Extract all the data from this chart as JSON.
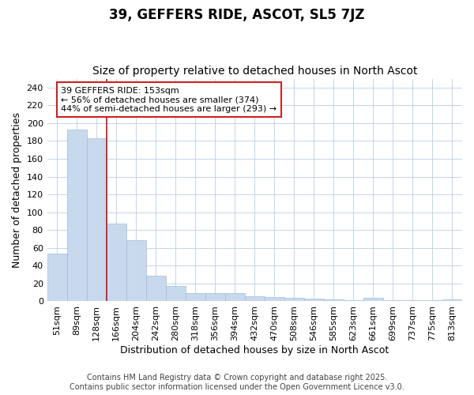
{
  "title": "39, GEFFERS RIDE, ASCOT, SL5 7JZ",
  "subtitle": "Size of property relative to detached houses in North Ascot",
  "xlabel": "Distribution of detached houses by size in North Ascot",
  "ylabel": "Number of detached properties",
  "bin_labels": [
    "51sqm",
    "89sqm",
    "128sqm",
    "166sqm",
    "204sqm",
    "242sqm",
    "280sqm",
    "318sqm",
    "356sqm",
    "394sqm",
    "432sqm",
    "470sqm",
    "508sqm",
    "546sqm",
    "585sqm",
    "623sqm",
    "661sqm",
    "699sqm",
    "737sqm",
    "775sqm",
    "813sqm"
  ],
  "values": [
    54,
    193,
    183,
    87,
    69,
    29,
    17,
    9,
    9,
    9,
    6,
    5,
    4,
    3,
    2,
    1,
    4,
    1,
    1,
    1,
    2
  ],
  "bar_color": "#c8d9ee",
  "bar_edge_color": "#a0bcd8",
  "vline_color": "#cc2222",
  "vline_pos": 2.5,
  "annotation_text": "39 GEFFERS RIDE: 153sqm\n← 56% of detached houses are smaller (374)\n44% of semi-detached houses are larger (293) →",
  "annotation_box_color": "#ffffff",
  "annotation_box_edge": "#cc2222",
  "ylim": [
    0,
    250
  ],
  "yticks": [
    0,
    20,
    40,
    60,
    80,
    100,
    120,
    140,
    160,
    180,
    200,
    220,
    240
  ],
  "grid_color": "#b8cfe8",
  "background_color": "#ffffff",
  "plot_bg_color": "#ffffff",
  "footer_line1": "Contains HM Land Registry data © Crown copyright and database right 2025.",
  "footer_line2": "Contains public sector information licensed under the Open Government Licence v3.0.",
  "title_fontsize": 12,
  "subtitle_fontsize": 10,
  "axis_label_fontsize": 9,
  "tick_fontsize": 8,
  "annotation_fontsize": 8,
  "footer_fontsize": 7
}
